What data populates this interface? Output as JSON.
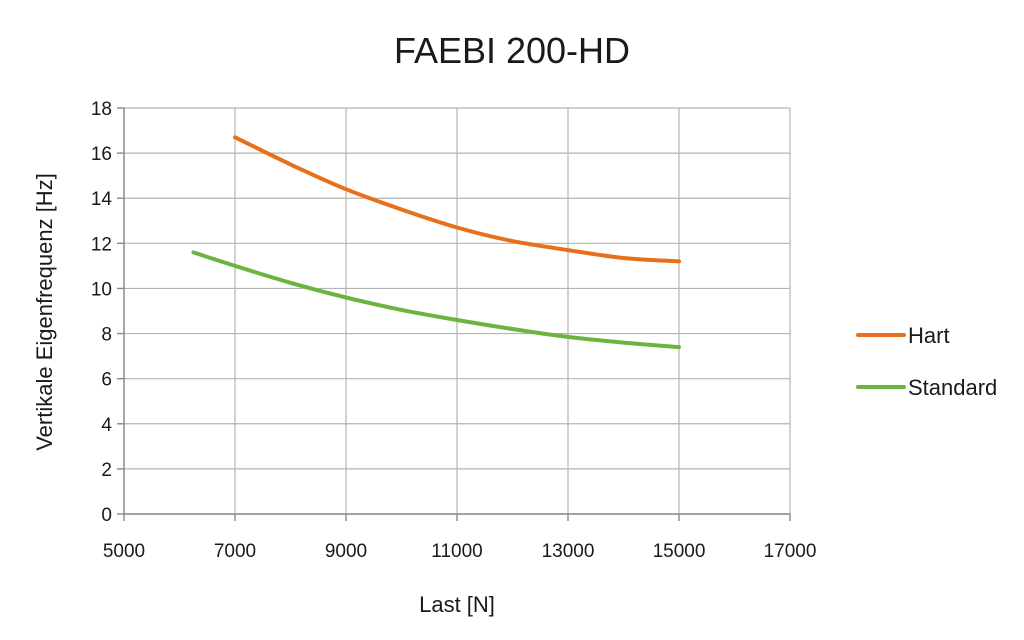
{
  "chart_data": {
    "type": "line",
    "title": "FAEBI 200-HD",
    "xlabel": "Last [N]",
    "ylabel": "Vertikale Eigenfrequenz [Hz]",
    "xlim": [
      5000,
      17000
    ],
    "ylim": [
      0,
      18
    ],
    "xticks": [
      5000,
      7000,
      9000,
      11000,
      13000,
      15000,
      17000
    ],
    "yticks": [
      0,
      2,
      4,
      6,
      8,
      10,
      12,
      14,
      16,
      18
    ],
    "grid": true,
    "legend_position": "right",
    "series": [
      {
        "name": "Hart",
        "color": "#e8701a",
        "x": [
          7000,
          8000,
          9000,
          10000,
          11000,
          12000,
          13000,
          14000,
          15000
        ],
        "y": [
          16.7,
          15.5,
          14.4,
          13.5,
          12.7,
          12.1,
          11.7,
          11.35,
          11.2
        ]
      },
      {
        "name": "Standard",
        "color": "#6db33f",
        "x": [
          6250,
          7000,
          8000,
          9000,
          10000,
          11000,
          12000,
          13000,
          14000,
          15000
        ],
        "y": [
          11.6,
          11.0,
          10.25,
          9.6,
          9.05,
          8.6,
          8.2,
          7.85,
          7.6,
          7.4
        ]
      }
    ]
  }
}
